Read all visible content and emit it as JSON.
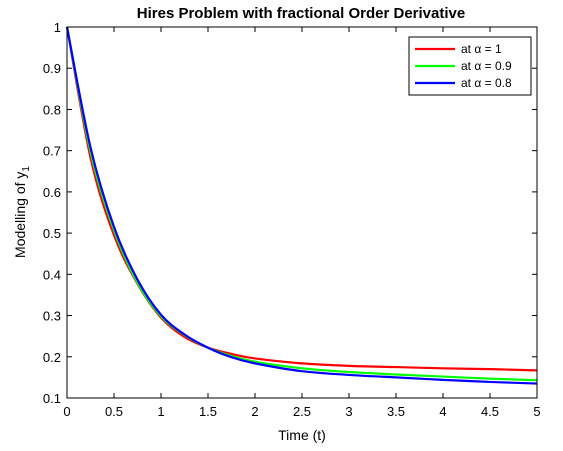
{
  "chart_data": {
    "type": "line",
    "title": "Hires Problem with fractional Order Derivative",
    "xlabel": "Time (t)",
    "ylabel_main": "Modelling of y",
    "ylabel_sub": "1",
    "xlim": [
      0,
      5
    ],
    "ylim": [
      0.1,
      1
    ],
    "xticks": [
      "0",
      "0.5",
      "1",
      "1.5",
      "2",
      "2.5",
      "3",
      "3.5",
      "4",
      "4.5",
      "5"
    ],
    "yticks": [
      "0.1",
      "0.2",
      "0.3",
      "0.4",
      "0.5",
      "0.6",
      "0.7",
      "0.8",
      "0.9",
      "1"
    ],
    "grid": false,
    "legend_position": "top-right",
    "x": [
      0,
      0.25,
      0.5,
      0.75,
      1.0,
      1.25,
      1.5,
      1.75,
      2.0,
      2.5,
      3.0,
      3.5,
      4.0,
      4.5,
      5.0
    ],
    "series": [
      {
        "name": "at α = 1",
        "color": "#ff0000",
        "values": [
          1.0,
          0.683,
          0.495,
          0.377,
          0.295,
          0.248,
          0.222,
          0.207,
          0.196,
          0.184,
          0.178,
          0.175,
          0.172,
          0.17,
          0.167
        ]
      },
      {
        "name": "at α = 0.9",
        "color": "#00ff00",
        "values": [
          1.0,
          0.697,
          0.507,
          0.379,
          0.298,
          0.253,
          0.222,
          0.202,
          0.188,
          0.172,
          0.163,
          0.157,
          0.152,
          0.147,
          0.143
        ]
      },
      {
        "name": "at α = 0.8",
        "color": "#0000ff",
        "values": [
          1.0,
          0.708,
          0.515,
          0.387,
          0.302,
          0.254,
          0.222,
          0.199,
          0.184,
          0.165,
          0.156,
          0.15,
          0.144,
          0.139,
          0.135
        ]
      }
    ]
  }
}
